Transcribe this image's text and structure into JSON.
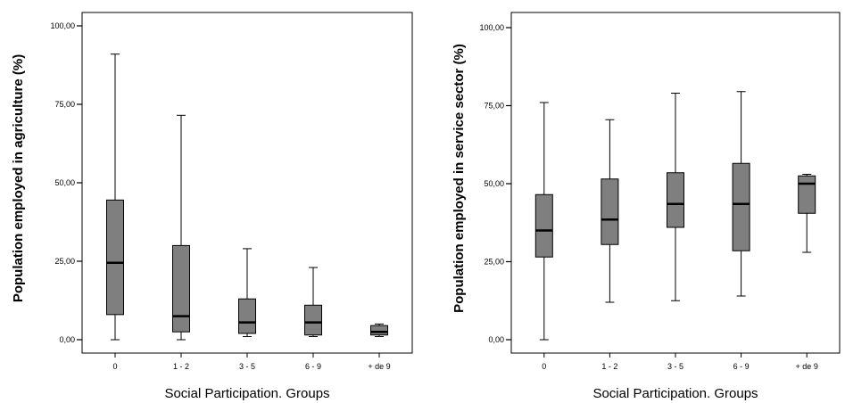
{
  "colors": {
    "box_fill": "#7f7f7f",
    "stroke": "#000000",
    "background": "#ffffff"
  },
  "chart_data": [
    {
      "type": "boxplot",
      "xlabel": "Social Participation. Groups",
      "ylabel": "Population employed in agriculture (%)",
      "ylim": [
        0,
        100
      ],
      "yticks": [
        "0,00",
        "25,00",
        "50,00",
        "75,00",
        "100,00"
      ],
      "grid": false,
      "categories": [
        "0",
        "1 - 2",
        "3 - 5",
        "6 - 9",
        "+ de 9"
      ],
      "boxes": [
        {
          "min": 0,
          "q1": 8,
          "median": 24.5,
          "q3": 44.5,
          "max": 91
        },
        {
          "min": 0,
          "q1": 2.5,
          "median": 7.5,
          "q3": 30,
          "max": 71.5
        },
        {
          "min": 1,
          "q1": 2,
          "median": 5.5,
          "q3": 13,
          "max": 29
        },
        {
          "min": 1,
          "q1": 1.5,
          "median": 5.5,
          "q3": 11,
          "max": 23
        },
        {
          "min": 1,
          "q1": 1.5,
          "median": 2.5,
          "q3": 4.5,
          "max": 5
        }
      ]
    },
    {
      "type": "boxplot",
      "xlabel": "Social Participation. Groups",
      "ylabel": "Population employed in service sector (%)",
      "ylim": [
        0,
        100
      ],
      "yticks": [
        "0,00",
        "25,00",
        "50,00",
        "75,00",
        "100,00"
      ],
      "grid": false,
      "categories": [
        "0",
        "1 - 2",
        "3 - 5",
        "6 - 9",
        "+ de 9"
      ],
      "boxes": [
        {
          "min": 0,
          "q1": 26.5,
          "median": 35,
          "q3": 46.5,
          "max": 76
        },
        {
          "min": 12,
          "q1": 30.5,
          "median": 38.5,
          "q3": 51.5,
          "max": 70.5
        },
        {
          "min": 12.5,
          "q1": 36,
          "median": 43.5,
          "q3": 53.5,
          "max": 79
        },
        {
          "min": 14,
          "q1": 28.5,
          "median": 43.5,
          "q3": 56.5,
          "max": 79.5
        },
        {
          "min": 28,
          "q1": 40.5,
          "median": 50,
          "q3": 52.5,
          "max": 53
        }
      ]
    }
  ]
}
